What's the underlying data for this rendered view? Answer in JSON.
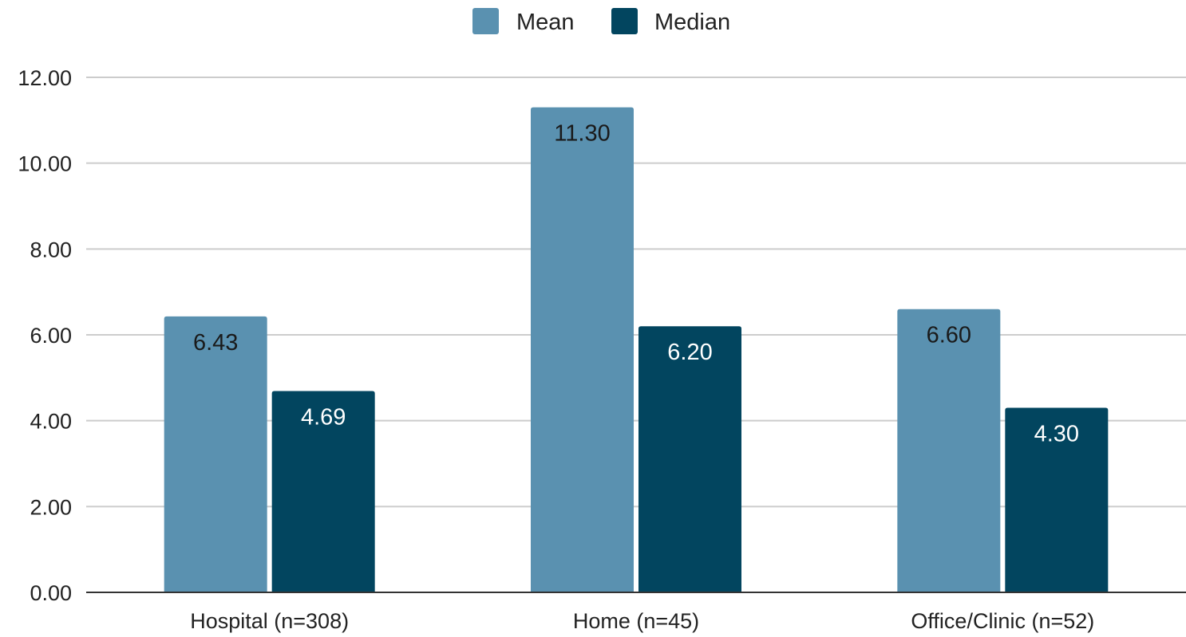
{
  "chart_data": {
    "type": "bar",
    "title": "",
    "xlabel": "",
    "ylabel": "",
    "categories": [
      "Hospital (n=308)",
      "Home (n=45)",
      "Office/Clinic (n=52)"
    ],
    "series": [
      {
        "name": "Mean",
        "values": [
          6.43,
          11.3,
          6.6
        ],
        "labels": [
          "6.43",
          "11.30",
          "6.60"
        ],
        "color": "#5a91b0",
        "label_color": "#1a1a1a"
      },
      {
        "name": "Median",
        "values": [
          4.69,
          6.2,
          4.3
        ],
        "labels": [
          "4.69",
          "6.20",
          "4.30"
        ],
        "color": "#02455f",
        "label_color": "#ffffff"
      }
    ],
    "ylim": [
      0,
      12
    ],
    "yticks": [
      0,
      2,
      4,
      6,
      8,
      10,
      12
    ],
    "ytick_labels": [
      "0.00",
      "2.00",
      "4.00",
      "6.00",
      "8.00",
      "10.00",
      "12.00"
    ],
    "grid": true,
    "legend_position": "top-center",
    "colors": {
      "grid": "#cccccc",
      "axis": "#333333",
      "text": "#222222"
    }
  }
}
